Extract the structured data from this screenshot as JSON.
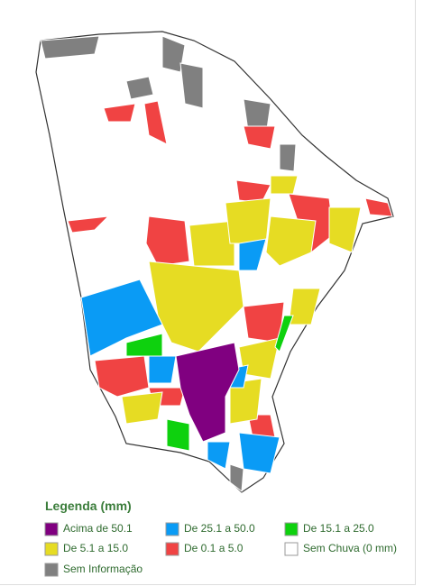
{
  "legend": {
    "title": "Legenda (mm)",
    "items": [
      {
        "label": "Acima de 50.1",
        "color": "#800080"
      },
      {
        "label": "De 25.1 a 50.0",
        "color": "#0a9bf5"
      },
      {
        "label": "De 15.1 a 25.0",
        "color": "#0ed10e"
      },
      {
        "label": "De 5.1 a 15.0",
        "color": "#e6dc23"
      },
      {
        "label": "De 0.1 a 5.0",
        "color": "#f04343"
      },
      {
        "label": "Sem Chuva (0 mm)",
        "color": "#ffffff"
      },
      {
        "label": "Sem Informação",
        "color": "#808080"
      }
    ]
  }
}
